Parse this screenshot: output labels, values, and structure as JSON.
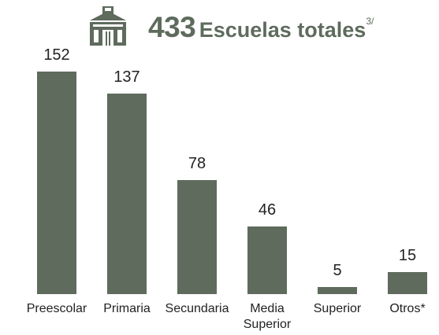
{
  "chart_data": {
    "type": "bar",
    "title": {
      "number": "433",
      "text": "Escuelas totales",
      "note": "3/"
    },
    "categories": [
      "Preescolar",
      "Primaria",
      "Secundaria",
      "Media Superior",
      "Superior",
      "Otros*"
    ],
    "values": [
      152,
      137,
      78,
      46,
      5,
      15
    ],
    "color": "#5e6b5d",
    "ylim": [
      0,
      152
    ]
  }
}
